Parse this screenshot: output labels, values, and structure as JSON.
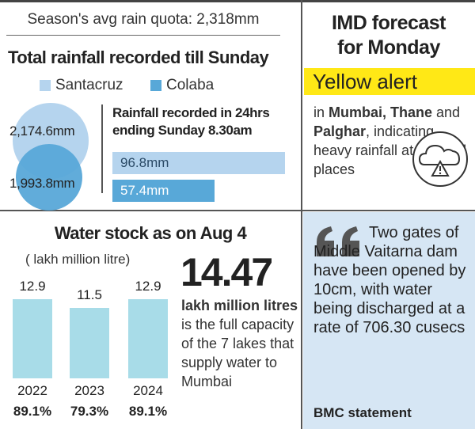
{
  "header": {
    "quota": "Season's avg rain quota: 2,318mm"
  },
  "rainfall": {
    "title": "Total rainfall recorded till Sunday",
    "legend": [
      {
        "label": "Santacruz",
        "color": "#b5d4ee"
      },
      {
        "label": "Colaba",
        "color": "#58a8d8"
      }
    ],
    "totals": [
      {
        "station": "Santacruz",
        "value_label": "2,174.6mm",
        "value": 2174.6
      },
      {
        "station": "Colaba",
        "value_label": "1,993.8mm",
        "value": 1993.8
      }
    ],
    "last24_title_line1": "Rainfall recorded in 24hrs",
    "last24_title_line2": "ending Sunday 8.30am",
    "last24": [
      {
        "station": "Santacruz",
        "value_label": "96.8mm",
        "value": 96.8
      },
      {
        "station": "Colaba",
        "value_label": "57.4mm",
        "value": 57.4
      }
    ]
  },
  "forecast": {
    "title_line1": "IMD forecast",
    "title_line2": "for Monday",
    "alert": "Yellow alert",
    "body_prefix": "in ",
    "body_bold1": "Mumbai, Thane",
    "body_and": " and ",
    "body_bold2": "Palghar",
    "body_rest": ", indicating heavy rainfall at isolated places",
    "icon": "cloud-warning-icon"
  },
  "water": {
    "title": "Water stock as on Aug 4",
    "unit": "( lakh million litre)",
    "big_value": "14.47",
    "big_unit": "lakh million litres",
    "caption": " is the full capacity of the 7 lakes that supply water to Mumbai"
  },
  "quote": {
    "text": "Two gates of Middle Vaitarna dam have been opened by 10cm, with water being discharged at a rate of 706.30 cusecs",
    "source": "BMC statement",
    "icon": "quote-icon",
    "panel_color": "#d6e6f4"
  },
  "chart_data": [
    {
      "type": "bar",
      "title": "Water stock as on Aug 4",
      "ylabel": "( lakh million litre)",
      "categories": [
        "2022",
        "2023",
        "2024"
      ],
      "values": [
        12.9,
        11.5,
        12.9
      ],
      "value_labels": [
        "12.9",
        "11.5",
        "12.9"
      ],
      "percent_labels": [
        "89.1%",
        "79.3%",
        "89.1%"
      ],
      "ylim": [
        0,
        14.47
      ],
      "color": "#a8dce8"
    },
    {
      "type": "bar",
      "title": "Rainfall recorded in 24hrs ending Sunday 8.30am",
      "categories": [
        "Santacruz",
        "Colaba"
      ],
      "values": [
        96.8,
        57.4
      ],
      "colors": [
        "#b5d4ee",
        "#58a8d8"
      ]
    }
  ]
}
